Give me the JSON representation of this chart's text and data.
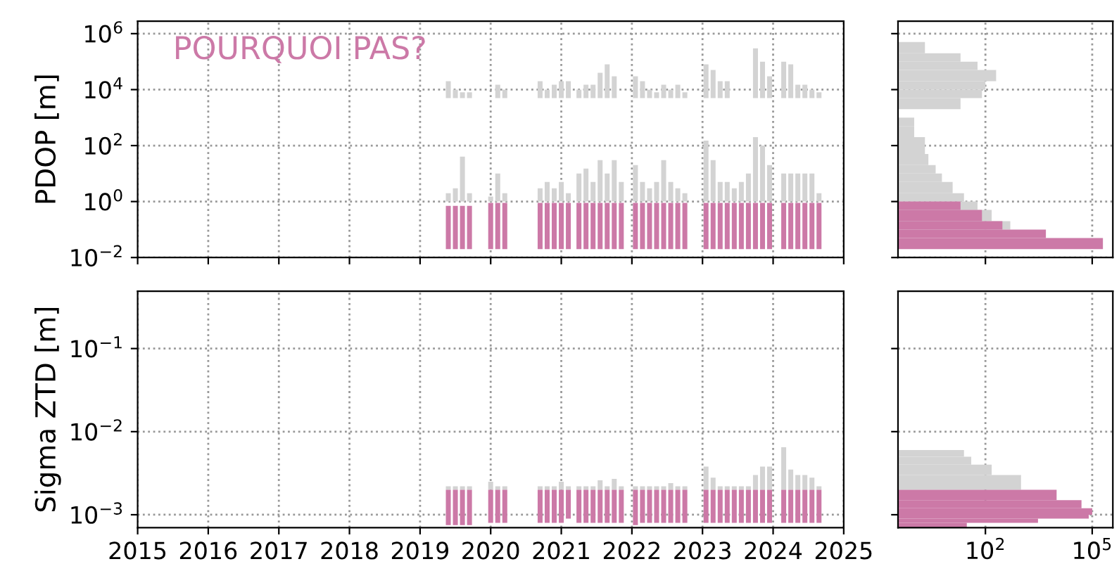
{
  "chart_data": [
    {
      "type": "bar",
      "ylabel": "PDOP [m]",
      "annotations": [
        "POURQUOI PAS?"
      ],
      "log": "y",
      "grid": true,
      "tick_labels": "y",
      "xlim": [
        2015,
        2025
      ],
      "xticks": [
        2015,
        2016,
        2017,
        2018,
        2019,
        2020,
        2021,
        2022,
        2023,
        2024,
        2025
      ],
      "ylim": [
        0.01,
        2800000
      ],
      "yticks": [
        {
          "value": 0.01,
          "label": "10$^{−2}$"
        },
        {
          "value": 1,
          "label": "10$^{0}$"
        },
        {
          "value": 100,
          "label": "10$^{2}$"
        },
        {
          "value": 10000,
          "label": "10$^{4}$"
        },
        {
          "value": 1000000,
          "label": "10$^{6}$"
        }
      ],
      "x": [
        2019.4,
        2019.5,
        2019.6,
        2019.7,
        2020.0,
        2020.1,
        2020.2,
        2020.7,
        2020.8,
        2020.9,
        2021.0,
        2021.1,
        2021.25,
        2021.35,
        2021.45,
        2021.55,
        2021.65,
        2021.75,
        2021.85,
        2022.05,
        2022.15,
        2022.25,
        2022.35,
        2022.45,
        2022.55,
        2022.65,
        2022.75,
        2023.05,
        2023.15,
        2023.25,
        2023.35,
        2023.45,
        2023.55,
        2023.65,
        2023.75,
        2023.85,
        2023.95,
        2024.15,
        2024.25,
        2024.35,
        2024.45,
        2024.55,
        2024.65
      ],
      "series": [
        {
          "color": "#d3d3d3",
          "base": [
            5000,
            5000,
            5000,
            5000,
            null,
            5000,
            5000,
            5000,
            5000,
            5000,
            5000,
            5000,
            5000,
            5000,
            5000,
            5000,
            5000,
            5000,
            null,
            5000,
            5000,
            5000,
            5000,
            5000,
            5000,
            5000,
            5000,
            5000,
            5000,
            5000,
            5000,
            null,
            null,
            null,
            5000,
            5000,
            5000,
            5000,
            5000,
            5000,
            5000,
            5000,
            5000
          ],
          "values": [
            15000,
            5000,
            3000,
            3000,
            null,
            10000,
            5000,
            15000,
            5000,
            10000,
            15000,
            15000,
            5000,
            10000,
            10000,
            35000,
            75000,
            25000,
            null,
            25000,
            15000,
            5000,
            3000,
            10000,
            5000,
            10000,
            3000,
            75000,
            45000,
            15000,
            15000,
            null,
            null,
            null,
            295000,
            95000,
            25000,
            95000,
            75000,
            10000,
            10000,
            5000,
            3000
          ]
        },
        {
          "color": "#d3d3d3",
          "base": [
            1,
            1,
            1,
            1,
            1,
            1,
            1,
            1,
            1,
            1,
            1,
            1,
            1,
            1,
            1,
            1,
            1,
            1,
            1,
            1,
            1,
            1,
            1,
            1,
            1,
            1,
            1,
            1,
            1,
            1,
            1,
            1,
            1,
            1,
            1,
            1,
            1,
            1,
            1,
            1,
            1,
            1,
            1
          ],
          "values": [
            1,
            2,
            39,
            1,
            0.5,
            9,
            1,
            2,
            4,
            2,
            4,
            1,
            9,
            14,
            4,
            29,
            9,
            29,
            4,
            19,
            4,
            2,
            4,
            29,
            4,
            2,
            1,
            149,
            29,
            4,
            4,
            2,
            4,
            9,
            199,
            99,
            19,
            9,
            9,
            9,
            9,
            9,
            1
          ]
        },
        {
          "color": "#cc79a7",
          "base": [
            0.02,
            0.02,
            0.02,
            0.02,
            0.02,
            0.02,
            0.02,
            0.02,
            0.02,
            0.02,
            0.02,
            0.02,
            0.02,
            0.02,
            0.02,
            0.02,
            0.02,
            0.02,
            0.02,
            0.02,
            0.02,
            0.02,
            0.02,
            0.02,
            0.02,
            0.02,
            0.02,
            0.02,
            0.02,
            0.02,
            0.02,
            0.02,
            0.02,
            0.02,
            0.02,
            0.02,
            0.02,
            0.02,
            0.02,
            0.02,
            0.02,
            0.02,
            0.02
          ],
          "values": [
            0.68,
            0.68,
            0.68,
            0.68,
            0.88,
            0.88,
            0.88,
            0.88,
            0.88,
            0.88,
            0.88,
            0.88,
            0.88,
            0.88,
            0.88,
            0.88,
            0.88,
            0.88,
            0.88,
            0.88,
            0.88,
            0.88,
            0.88,
            0.88,
            0.88,
            0.88,
            0.88,
            0.88,
            0.88,
            0.88,
            0.88,
            0.88,
            0.88,
            0.88,
            0.88,
            0.88,
            0.88,
            0.88,
            0.88,
            0.88,
            0.88,
            0.88,
            0.88
          ]
        }
      ]
    },
    {
      "type": "histogram",
      "orientation": "horizontal",
      "log": "xy",
      "grid": true,
      "tick_labels": false,
      "xlim": [
        0.35,
        380000
      ],
      "ylim": [
        0.01,
        2800000
      ],
      "yticks": [
        {
          "value": 0.01,
          "label": null
        },
        {
          "value": 1,
          "label": null
        },
        {
          "value": 100,
          "label": null
        },
        {
          "value": 10000,
          "label": null
        },
        {
          "value": 1000000,
          "label": null
        }
      ],
      "bins": [
        0.02,
        0.05,
        0.1,
        0.2,
        0.5,
        1,
        2,
        5,
        10,
        20,
        50,
        100,
        200,
        500,
        1000,
        2000,
        5000,
        10000,
        20000,
        50000,
        100000,
        200000,
        500000
      ],
      "series": [
        {
          "color": "#d3d3d3",
          "values": [
            null,
            null,
            500,
            150,
            60,
            25,
            12,
            6,
            4,
            2.5,
            2,
            2,
            1,
            1,
            null,
            20,
            80,
            100,
            200,
            60,
            20,
            2
          ]
        },
        {
          "color": "#cc79a7",
          "values": [
            200000,
            5000,
            300,
            80,
            20,
            null,
            null,
            null,
            null,
            null,
            null,
            null,
            null,
            null,
            null,
            null,
            null,
            null,
            null,
            null,
            null,
            null
          ]
        }
      ]
    },
    {
      "type": "bar",
      "ylabel": "Sigma ZTD [m]",
      "log": "y",
      "grid": true,
      "xlim": [
        2015,
        2025
      ],
      "xticks": [
        2015,
        2016,
        2017,
        2018,
        2019,
        2020,
        2021,
        2022,
        2023,
        2024,
        2025
      ],
      "ylim": [
        0.0007,
        0.49
      ],
      "yticks": [
        {
          "value": 0.001,
          "label": "10$^{−3}$"
        },
        {
          "value": 0.01,
          "label": "10$^{−2}$"
        },
        {
          "value": 0.1,
          "label": "10$^{−1}$"
        }
      ],
      "x": [
        2019.4,
        2019.5,
        2019.6,
        2019.7,
        2020.0,
        2020.1,
        2020.2,
        2020.7,
        2020.8,
        2020.9,
        2021.0,
        2021.1,
        2021.25,
        2021.35,
        2021.45,
        2021.55,
        2021.65,
        2021.75,
        2021.85,
        2022.05,
        2022.15,
        2022.25,
        2022.35,
        2022.45,
        2022.55,
        2022.65,
        2022.75,
        2023.05,
        2023.15,
        2023.25,
        2023.35,
        2023.45,
        2023.55,
        2023.65,
        2023.75,
        2023.85,
        2023.95,
        2024.15,
        2024.25,
        2024.35,
        2024.45,
        2024.55,
        2024.65
      ],
      "series": [
        {
          "color": "#d3d3d3",
          "base": [
            0.002,
            0.002,
            0.002,
            0.002,
            0.002,
            0.002,
            0.002,
            0.002,
            0.002,
            0.002,
            0.002,
            0.002,
            0.002,
            0.002,
            0.002,
            0.002,
            0.002,
            0.002,
            0.002,
            0.002,
            0.002,
            0.002,
            0.002,
            0.002,
            0.002,
            0.002,
            0.002,
            0.002,
            0.002,
            0.002,
            0.002,
            0.002,
            0.002,
            0.002,
            0.002,
            0.002,
            0.002,
            0.002,
            0.002,
            0.002,
            0.002,
            0.002,
            0.002
          ],
          "values": [
            0.0002,
            0.0002,
            0.0002,
            0.0002,
            0.0005,
            0.0002,
            0.0002,
            0.0002,
            0.0002,
            0.0002,
            0.0005,
            0.0002,
            0.0002,
            0.0002,
            0.0002,
            0.0006,
            0.0002,
            0.0007,
            0.0002,
            0.0002,
            0.0002,
            0.0002,
            0.0002,
            0.0002,
            0.0004,
            0.0002,
            0.0002,
            0.0018,
            0.0008,
            0.0002,
            0.0002,
            0.0002,
            0.0002,
            0.0002,
            0.001,
            0.0018,
            0.0018,
            0.0045,
            0.0015,
            0.001,
            0.001,
            0.0008,
            0.0002
          ]
        },
        {
          "color": "#cc79a7",
          "base": [
            0.00075,
            0.00075,
            0.00075,
            0.00075,
            0.0008,
            0.0008,
            0.0008,
            0.0008,
            0.0008,
            0.0008,
            0.0008,
            0.0009,
            0.0008,
            0.0008,
            0.0008,
            0.0008,
            0.0008,
            0.0008,
            0.0008,
            0.00075,
            0.0008,
            0.0008,
            0.0008,
            0.0008,
            0.0008,
            0.0008,
            0.0008,
            0.0008,
            0.0008,
            0.0008,
            0.0008,
            0.0008,
            0.0008,
            0.0008,
            0.0008,
            0.0008,
            0.0008,
            0.0008,
            0.0008,
            0.0008,
            0.0008,
            0.0008,
            0.0008
          ],
          "values": [
            0.00125,
            0.00125,
            0.00125,
            0.00125,
            0.0012,
            0.0012,
            0.0012,
            0.0012,
            0.0012,
            0.0012,
            0.0012,
            0.0011,
            0.0012,
            0.0012,
            0.0012,
            0.0012,
            0.0012,
            0.0012,
            0.0012,
            0.00125,
            0.0012,
            0.0012,
            0.0012,
            0.0012,
            0.0012,
            0.0012,
            0.0012,
            0.0012,
            0.0012,
            0.0012,
            0.0012,
            0.0012,
            0.0012,
            0.0012,
            0.0012,
            0.0012,
            0.0012,
            0.0012,
            0.0012,
            0.0012,
            0.0012,
            0.0012,
            0.0012
          ]
        }
      ]
    },
    {
      "type": "histogram",
      "orientation": "horizontal",
      "log": "xy",
      "grid": true,
      "tick_labels": "x",
      "xlim": [
        0.35,
        380000
      ],
      "xticks": [
        {
          "value": 100,
          "label": "10$^{2}$"
        },
        {
          "value": 100000,
          "label": "10$^{5}$"
        }
      ],
      "ylim": [
        0.0007,
        0.49
      ],
      "yticks": [
        {
          "value": 0.001,
          "label": null
        },
        {
          "value": 0.01,
          "label": null
        },
        {
          "value": 0.1,
          "label": null
        }
      ],
      "bins": [
        0.0007,
        0.0008,
        0.0009,
        0.001,
        0.0012,
        0.0015,
        0.002,
        0.003,
        0.004,
        0.005,
        0.006
      ],
      "series": [
        {
          "color": "#d3d3d3",
          "values": [
            null,
            null,
            null,
            null,
            null,
            null,
            1000,
            150,
            40,
            25
          ]
        },
        {
          "color": "#cc79a7",
          "values": [
            30,
            3000,
            80000,
            100000,
            50000,
            10000,
            null,
            null,
            null,
            null
          ]
        }
      ]
    }
  ]
}
